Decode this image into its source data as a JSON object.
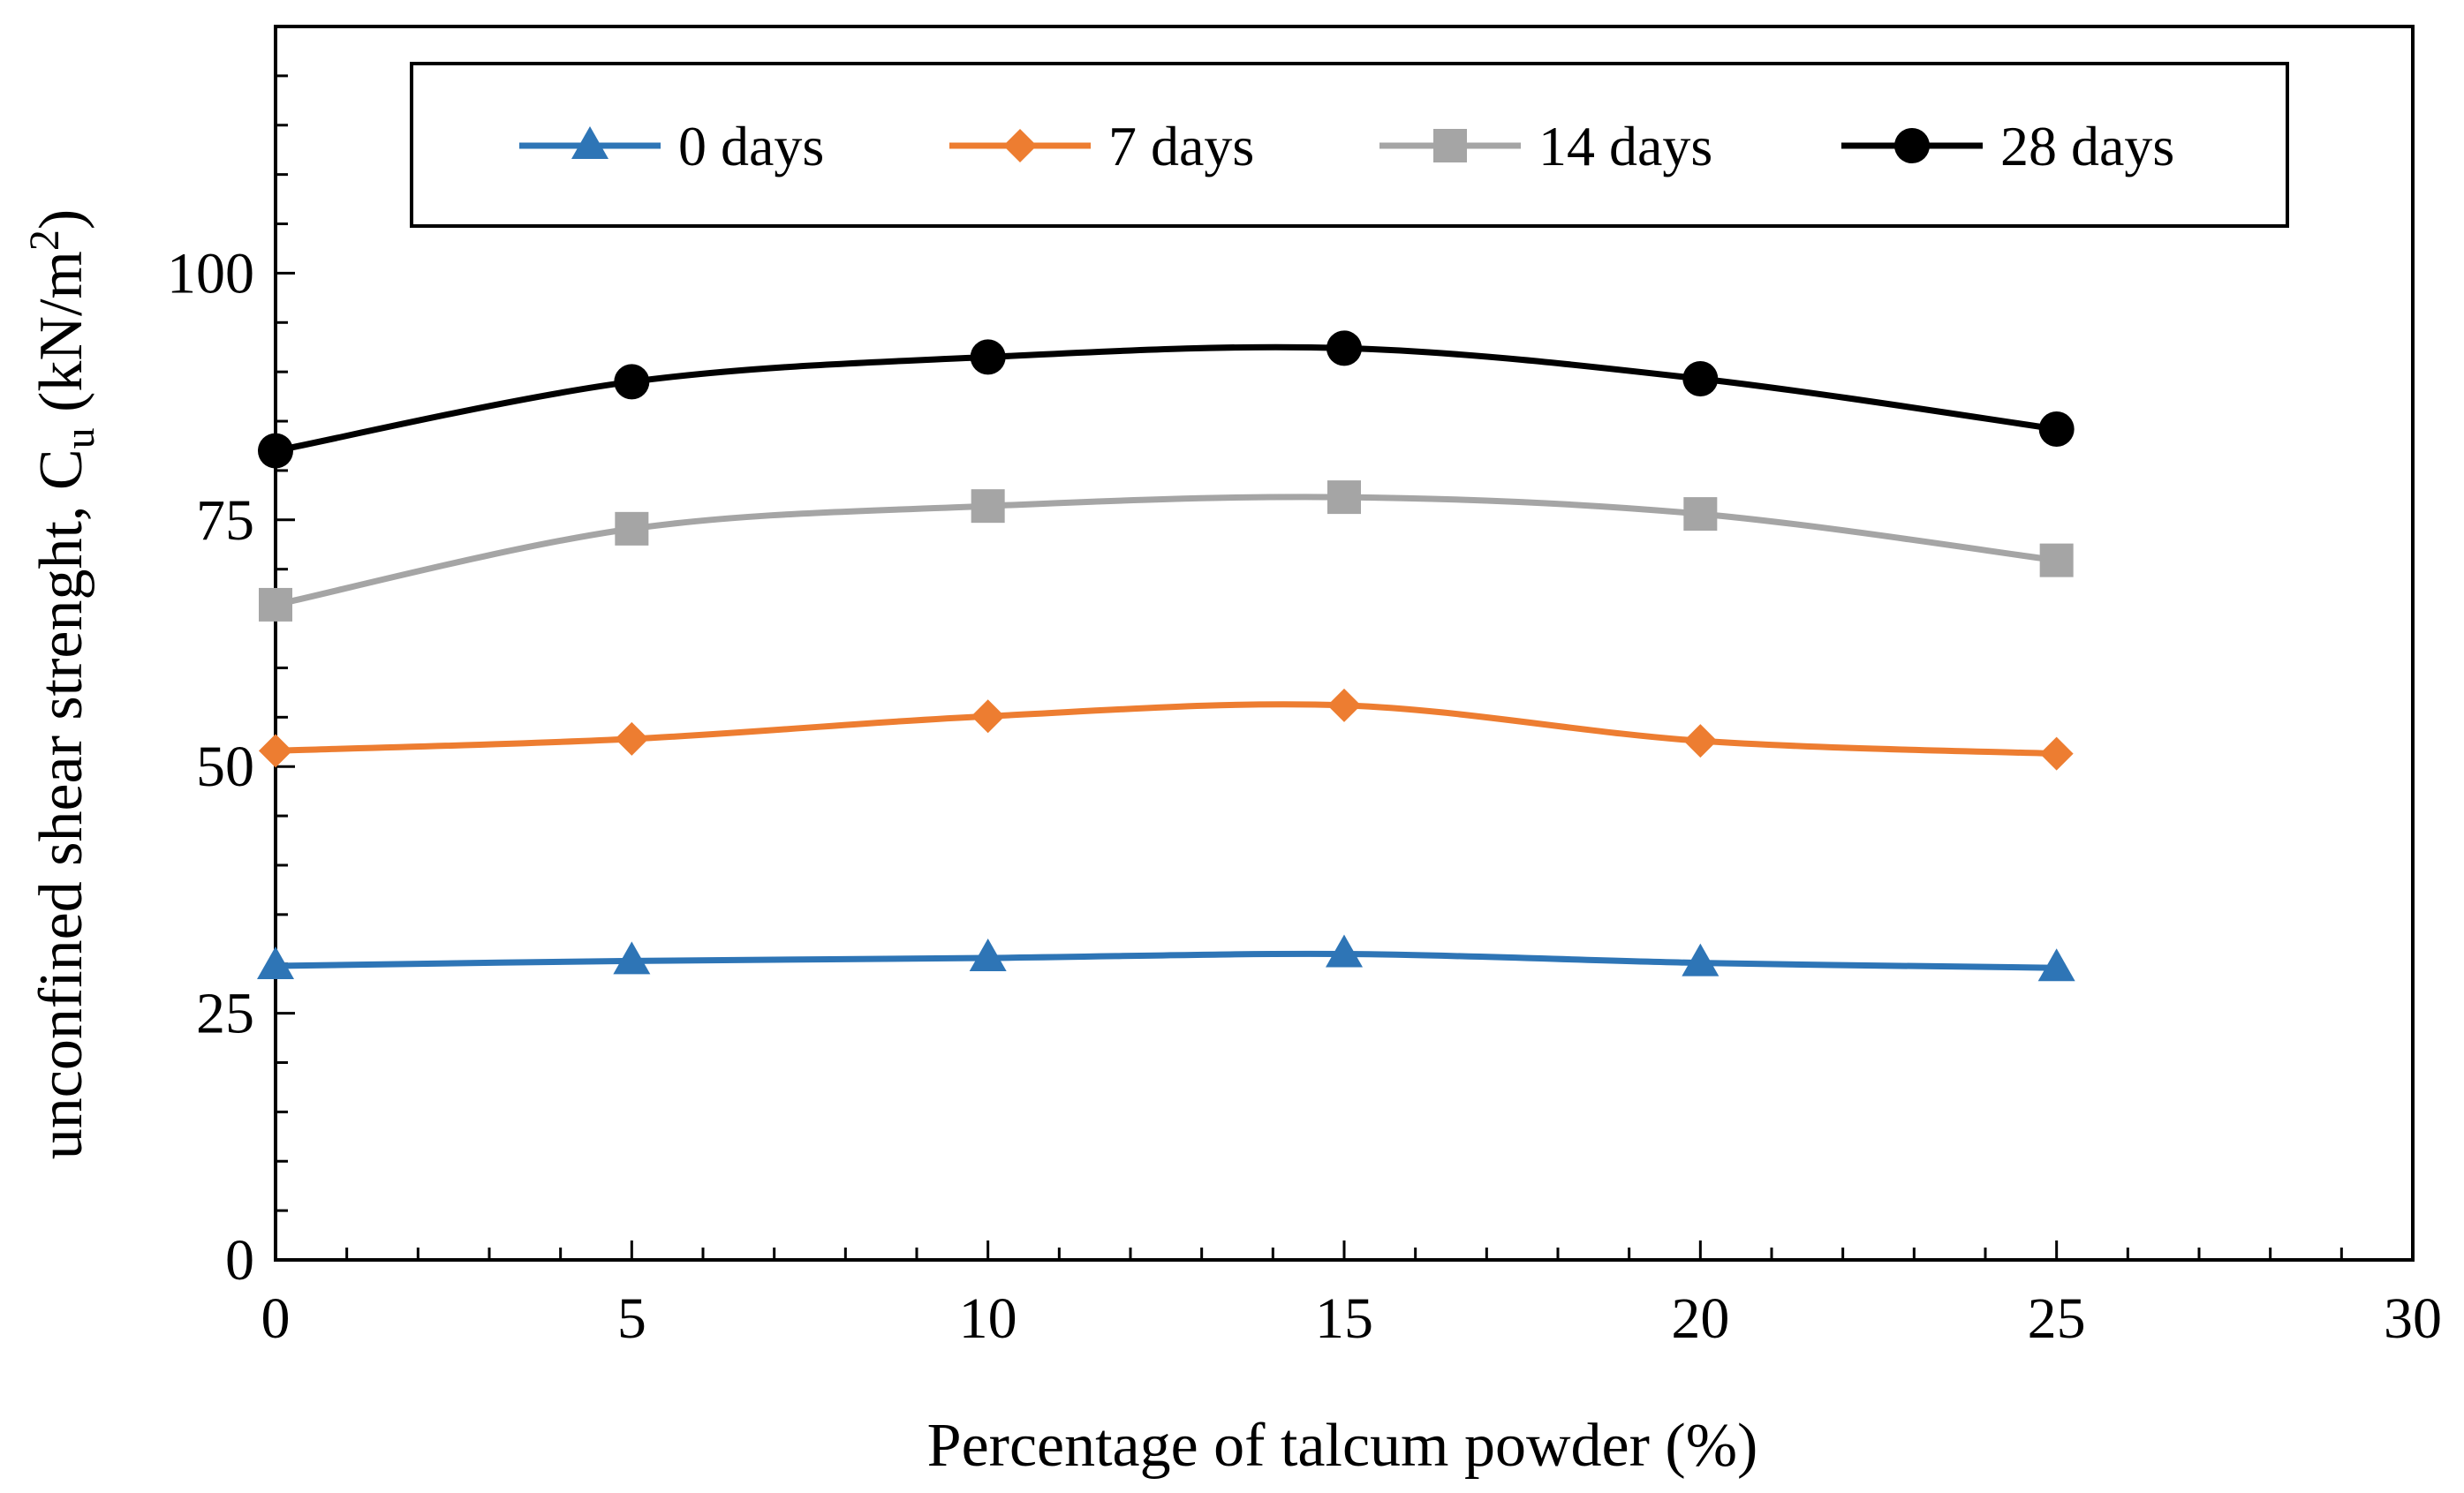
{
  "chart_data": {
    "type": "line",
    "title": "",
    "xlabel": "Percentage of talcum powder (%)",
    "ylabel": {
      "main": "unconfined shear strenght, C",
      "subscript": "u",
      "unit_open": " (kN/m",
      "superscript": "2",
      "unit_close": ")"
    },
    "xlim": [
      0,
      30
    ],
    "ylim": [
      0,
      125
    ],
    "xticks": [
      0,
      5,
      10,
      15,
      20,
      25,
      30
    ],
    "xtick_labels": [
      "0",
      "5",
      "10",
      "15",
      "20",
      "25",
      "30"
    ],
    "yticks": [
      0,
      25,
      50,
      75,
      100
    ],
    "ytick_labels": [
      "0",
      "25",
      "50",
      "75",
      "100"
    ],
    "x": [
      0,
      5,
      10,
      15,
      20,
      25
    ],
    "series": [
      {
        "name": "0 days",
        "color": "#2E75B6",
        "marker": "triangle",
        "values": [
          29.8,
          30.3,
          30.6,
          31.0,
          30.1,
          29.6
        ]
      },
      {
        "name": "7 days",
        "color": "#ED7D31",
        "marker": "diamond",
        "values": [
          51.6,
          52.8,
          55.1,
          56.2,
          52.6,
          51.3
        ]
      },
      {
        "name": "14 days",
        "color": "#A5A5A5",
        "marker": "square",
        "values": [
          66.4,
          74.1,
          76.4,
          77.3,
          75.6,
          70.9
        ]
      },
      {
        "name": "28 days",
        "color": "#000000",
        "marker": "circle",
        "values": [
          82.0,
          89.0,
          91.5,
          92.4,
          89.3,
          84.2
        ]
      }
    ],
    "legend_position": "top",
    "grid": false
  }
}
